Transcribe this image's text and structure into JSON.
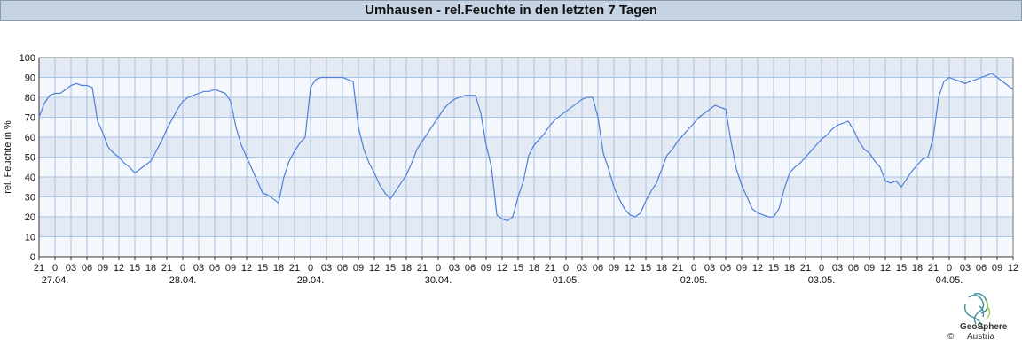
{
  "title": "Umhausen - rel.Feuchte in den letzten 7 Tagen",
  "logo": {
    "name": "GeoSphere",
    "copyright": "©",
    "country": "Austria"
  },
  "chart_data": {
    "type": "line",
    "title": "Umhausen - rel.Feuchte in den letzten 7 Tagen",
    "ylabel": "rel. Feuchte in %",
    "xlabel": "",
    "ylim": [
      0,
      100
    ],
    "yticks": [
      0,
      10,
      20,
      30,
      40,
      50,
      60,
      70,
      80,
      90,
      100
    ],
    "xlim_hours": [
      0,
      183
    ],
    "x_tick_labels": [
      "21",
      "0",
      "03",
      "06",
      "09",
      "12",
      "15",
      "18",
      "21",
      "0",
      "03",
      "06",
      "09",
      "12",
      "15",
      "18",
      "21",
      "0",
      "03",
      "06",
      "09",
      "12",
      "15",
      "18",
      "21",
      "0",
      "03",
      "06",
      "09",
      "12",
      "15",
      "18",
      "21",
      "0",
      "03",
      "06",
      "09",
      "12",
      "15",
      "18",
      "21",
      "0",
      "03",
      "06",
      "09",
      "12",
      "15",
      "18",
      "21",
      "0",
      "03",
      "06",
      "09",
      "12",
      "15",
      "18",
      "21",
      "0",
      "03",
      "06",
      "09",
      "12"
    ],
    "date_labels": [
      "27.04.",
      "28.04.",
      "29.04.",
      "30.04.",
      "01.05.",
      "02.05.",
      "03.05.",
      "04.05."
    ],
    "grid": true,
    "series": [
      {
        "color": "#4f7fd9",
        "points": [
          [
            0,
            70
          ],
          [
            1,
            77
          ],
          [
            2,
            81
          ],
          [
            3,
            82
          ],
          [
            4,
            82
          ],
          [
            5,
            84
          ],
          [
            6,
            86
          ],
          [
            7,
            87
          ],
          [
            8,
            86
          ],
          [
            9,
            86
          ],
          [
            10,
            85
          ],
          [
            11,
            68
          ],
          [
            12,
            62
          ],
          [
            13,
            55
          ],
          [
            14,
            52
          ],
          [
            15,
            50
          ],
          [
            16,
            47
          ],
          [
            17,
            45
          ],
          [
            18,
            42
          ],
          [
            19,
            44
          ],
          [
            20,
            46
          ],
          [
            21,
            48
          ],
          [
            22,
            53
          ],
          [
            23,
            58
          ],
          [
            24,
            64
          ],
          [
            25,
            69
          ],
          [
            26,
            74
          ],
          [
            27,
            78
          ],
          [
            28,
            80
          ],
          [
            29,
            81
          ],
          [
            30,
            82
          ],
          [
            31,
            83
          ],
          [
            32,
            83
          ],
          [
            33,
            84
          ],
          [
            34,
            83
          ],
          [
            35,
            82
          ],
          [
            36,
            78
          ],
          [
            37,
            65
          ],
          [
            38,
            56
          ],
          [
            39,
            50
          ],
          [
            40,
            44
          ],
          [
            41,
            38
          ],
          [
            42,
            32
          ],
          [
            43,
            31
          ],
          [
            44,
            29
          ],
          [
            45,
            27
          ],
          [
            46,
            40
          ],
          [
            47,
            48
          ],
          [
            48,
            53
          ],
          [
            49,
            57
          ],
          [
            50,
            60
          ],
          [
            51,
            85
          ],
          [
            52,
            89
          ],
          [
            53,
            90
          ],
          [
            54,
            90
          ],
          [
            55,
            90
          ],
          [
            56,
            90
          ],
          [
            57,
            90
          ],
          [
            58,
            89
          ],
          [
            59,
            88
          ],
          [
            60,
            65
          ],
          [
            61,
            54
          ],
          [
            62,
            47
          ],
          [
            63,
            42
          ],
          [
            64,
            36
          ],
          [
            65,
            32
          ],
          [
            66,
            29
          ],
          [
            67,
            33
          ],
          [
            68,
            37
          ],
          [
            69,
            41
          ],
          [
            70,
            47
          ],
          [
            71,
            54
          ],
          [
            72,
            58
          ],
          [
            73,
            62
          ],
          [
            74,
            66
          ],
          [
            75,
            70
          ],
          [
            76,
            74
          ],
          [
            77,
            77
          ],
          [
            78,
            79
          ],
          [
            79,
            80
          ],
          [
            80,
            81
          ],
          [
            81,
            81
          ],
          [
            82,
            81
          ],
          [
            83,
            72
          ],
          [
            84,
            56
          ],
          [
            85,
            45
          ],
          [
            86,
            21
          ],
          [
            87,
            19
          ],
          [
            88,
            18
          ],
          [
            89,
            20
          ],
          [
            90,
            30
          ],
          [
            91,
            38
          ],
          [
            92,
            51
          ],
          [
            93,
            56
          ],
          [
            94,
            59
          ],
          [
            95,
            62
          ],
          [
            96,
            66
          ],
          [
            97,
            69
          ],
          [
            98,
            71
          ],
          [
            99,
            73
          ],
          [
            100,
            75
          ],
          [
            101,
            77
          ],
          [
            102,
            79
          ],
          [
            103,
            80
          ],
          [
            104,
            80
          ],
          [
            105,
            70
          ],
          [
            106,
            52
          ],
          [
            107,
            44
          ],
          [
            108,
            35
          ],
          [
            109,
            29
          ],
          [
            110,
            24
          ],
          [
            111,
            21
          ],
          [
            112,
            20
          ],
          [
            113,
            22
          ],
          [
            114,
            28
          ],
          [
            115,
            33
          ],
          [
            116,
            37
          ],
          [
            117,
            44
          ],
          [
            118,
            51
          ],
          [
            119,
            54
          ],
          [
            120,
            58
          ],
          [
            121,
            61
          ],
          [
            122,
            64
          ],
          [
            123,
            67
          ],
          [
            124,
            70
          ],
          [
            125,
            72
          ],
          [
            126,
            74
          ],
          [
            127,
            76
          ],
          [
            128,
            75
          ],
          [
            129,
            74
          ],
          [
            130,
            58
          ],
          [
            131,
            44
          ],
          [
            132,
            36
          ],
          [
            133,
            30
          ],
          [
            134,
            24
          ],
          [
            135,
            22
          ],
          [
            136,
            21
          ],
          [
            137,
            20
          ],
          [
            138,
            20
          ],
          [
            139,
            24
          ],
          [
            140,
            34
          ],
          [
            141,
            42
          ],
          [
            142,
            45
          ],
          [
            143,
            47
          ],
          [
            144,
            50
          ],
          [
            145,
            53
          ],
          [
            146,
            56
          ],
          [
            147,
            59
          ],
          [
            148,
            61
          ],
          [
            149,
            64
          ],
          [
            150,
            66
          ],
          [
            151,
            67
          ],
          [
            152,
            68
          ],
          [
            153,
            64
          ],
          [
            154,
            58
          ],
          [
            155,
            54
          ],
          [
            156,
            52
          ],
          [
            157,
            48
          ],
          [
            158,
            45
          ],
          [
            159,
            38
          ],
          [
            160,
            37
          ],
          [
            161,
            38
          ],
          [
            162,
            35
          ],
          [
            163,
            39
          ],
          [
            164,
            43
          ],
          [
            165,
            46
          ],
          [
            166,
            49
          ],
          [
            167,
            50
          ],
          [
            168,
            60
          ],
          [
            169,
            80
          ],
          [
            170,
            88
          ],
          [
            171,
            90
          ],
          [
            172,
            89
          ],
          [
            173,
            88
          ],
          [
            174,
            87
          ],
          [
            175,
            88
          ],
          [
            176,
            89
          ],
          [
            177,
            90
          ],
          [
            178,
            91
          ],
          [
            179,
            92
          ],
          [
            180,
            90
          ],
          [
            181,
            88
          ],
          [
            182,
            86
          ],
          [
            183,
            84
          ]
        ]
      }
    ]
  }
}
